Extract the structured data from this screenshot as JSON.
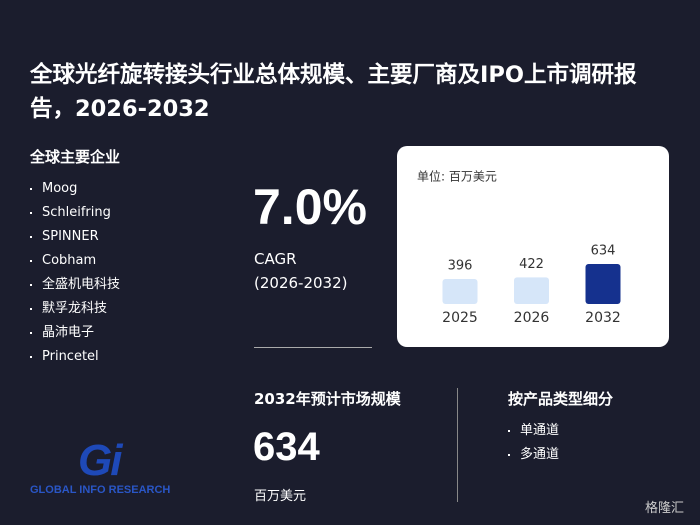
{
  "title": "全球光纤旋转接头行业总体规模、主要厂商及IPO上市调研报告，2026-2032",
  "companies": {
    "heading": "全球主要企业",
    "items": [
      "Moog",
      "Schleifring",
      "SPINNER",
      "Cobham",
      "全盛机电科技",
      "默孚龙科技",
      "晶沛电子",
      "Princetel"
    ]
  },
  "cagr": {
    "value": "7.0%",
    "label": "CAGR",
    "period": "(2026-2032)"
  },
  "chart_data": {
    "type": "bar",
    "unit": "单位: 百万美元",
    "categories": [
      "2025",
      "2026",
      "2032"
    ],
    "values": [
      396,
      422,
      634
    ],
    "colors": [
      "#d6e6f9",
      "#d6e6f9",
      "#15318e"
    ]
  },
  "market": {
    "heading": "2032年预计市场规模",
    "value": "634",
    "unit": "百万美元"
  },
  "segments": {
    "heading": "按产品类型细分",
    "items": [
      "单通道",
      "多通道"
    ]
  },
  "logo": {
    "mark": "Gi",
    "text": "GLOBAL INFO RESEARCH"
  },
  "watermark": "格隆汇"
}
